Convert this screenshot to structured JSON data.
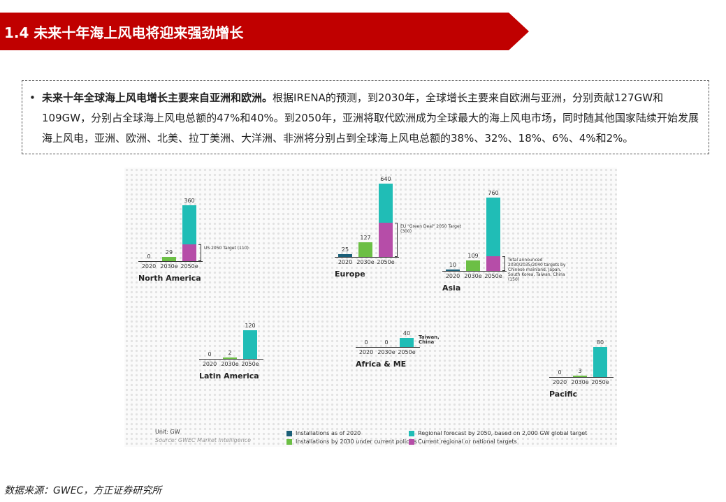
{
  "title": "1.4 未来十年海上风电将迎来强劲增长",
  "summary": {
    "bold": "未来十年全球海上风电增长主要来自亚洲和欧洲。",
    "text": "根据IRENA的预测，到2030年，全球增长主要来自欧洲与亚洲，分别贡献127GW和109GW，分别占全球海上风电总额的47%和40%。到2050年，亚洲将取代欧洲成为全球最大的海上风电市场，同时随其他国家陆续开始发展海上风电，亚洲、欧洲、北美、拉丁美洲、大洋洲、非洲将分别占到全球海上风电总额的38%、32%、18%、6%、4%和2%。"
  },
  "chart_data": {
    "type": "bar",
    "categories": [
      "2020",
      "2030e",
      "2050e"
    ],
    "unit": "Unit: GW",
    "source": "Source: GWEC Market Intelligence",
    "colors": {
      "2020": "#1b5f78",
      "2030e": "#6cbf45",
      "2050e": "#20bdb6",
      "target": "#b64da8"
    },
    "legend": [
      "Installations as of 2020",
      "Installations by 2030 under current policies",
      "Regional forecast by 2050, based on 2,000 GW global target",
      "Current regional or national targets"
    ],
    "panels": [
      {
        "name": "North America",
        "values": [
          0,
          29,
          360
        ],
        "target": 110,
        "target_label": "US 2050 Target",
        "target_value_label": "(110)"
      },
      {
        "name": "Europe",
        "values": [
          25,
          127,
          640
        ],
        "target": 300,
        "target_label": "EU \"Green Deal\" 2050 Target",
        "target_value_label": "(300)"
      },
      {
        "name": "Asia",
        "values": [
          10,
          109,
          760
        ],
        "target": 150,
        "target_label": "Total announced 2030/2035/2040 targets by Chinese mainland, Japan, South Korea, Taiwan, China",
        "target_value_label": "(150)"
      },
      {
        "name": "Latin America",
        "values": [
          0,
          2,
          120
        ]
      },
      {
        "name": "Africa & ME",
        "values": [
          0,
          0,
          40
        ],
        "note": "Taiwan, China"
      },
      {
        "name": "Pacific",
        "values": [
          0,
          3,
          80
        ]
      }
    ]
  },
  "footer": "数据来源：GWEC，方正证券研究所"
}
